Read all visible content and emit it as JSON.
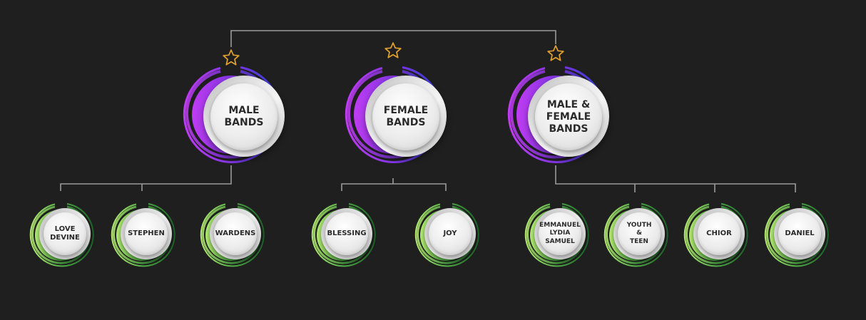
{
  "colors": {
    "background": "#1f1f1f",
    "connector": "#9a9a9a",
    "star": "#e0a030",
    "big_ring_start": "#b43bf0",
    "big_ring_end": "#2d3fd6",
    "small_ring_start": "#a9e46a",
    "small_ring_end": "#1f6a2a"
  },
  "main_nodes": [
    {
      "label": "MALE BANDS",
      "lines": [
        "MALE",
        "BANDS"
      ],
      "icon": "star-icon"
    },
    {
      "label": "FEMALE BANDS",
      "lines": [
        "FEMALE",
        "BANDS"
      ],
      "icon": "star-icon"
    },
    {
      "label": "MALE & FEMALE BANDS",
      "lines": [
        "MALE &",
        "FEMALE",
        "BANDS"
      ],
      "icon": "star-icon"
    }
  ],
  "sub_nodes": {
    "male_bands": [
      {
        "lines": [
          "LOVE",
          "DEVINE"
        ]
      },
      {
        "lines": [
          "STEPHEN"
        ]
      },
      {
        "lines": [
          "WARDENS"
        ]
      }
    ],
    "female_bands": [
      {
        "lines": [
          "BLESSING"
        ]
      },
      {
        "lines": [
          "JOY"
        ]
      }
    ],
    "mixed_bands": [
      {
        "lines": [
          "EMMANUEL",
          "LYDIA",
          "SAMUEL"
        ]
      },
      {
        "lines": [
          "YOUTH",
          "&",
          "TEEN"
        ]
      },
      {
        "lines": [
          "CHIOR"
        ]
      },
      {
        "lines": [
          "DANIEL"
        ]
      }
    ]
  }
}
